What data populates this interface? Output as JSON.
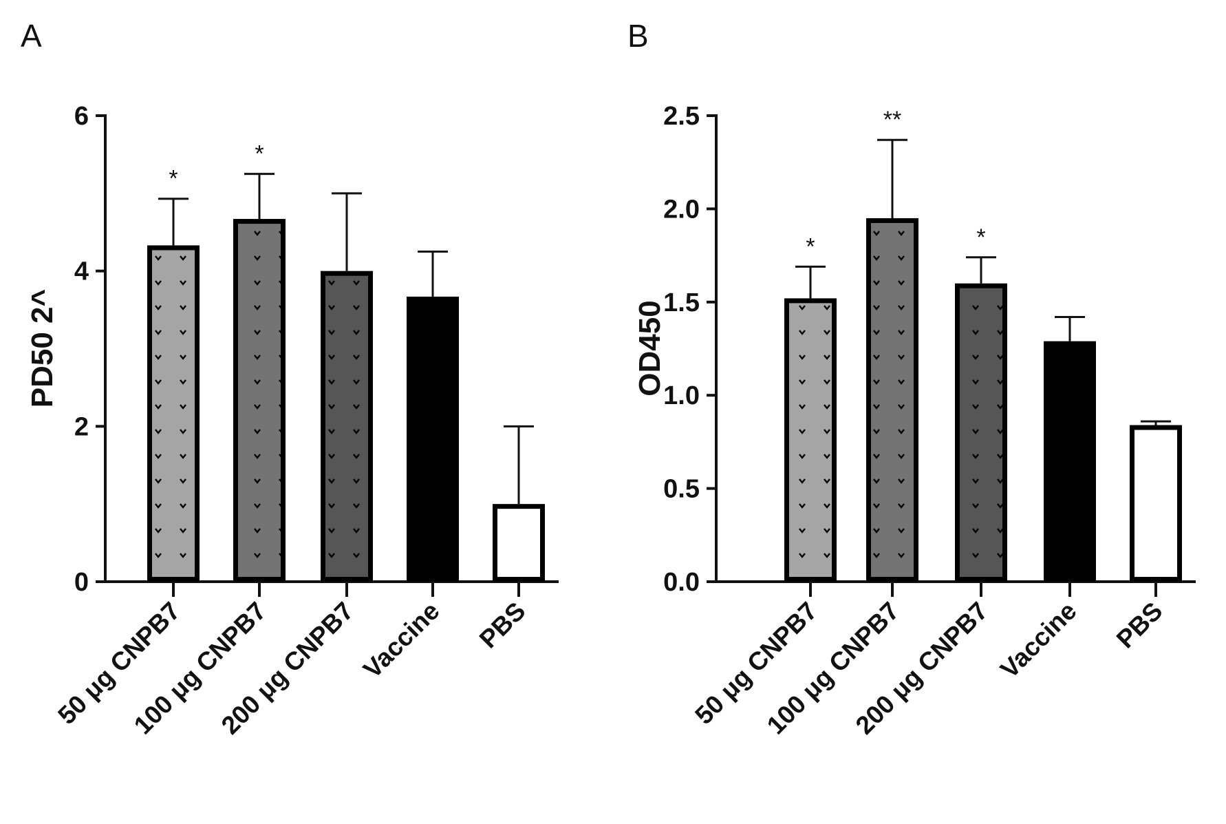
{
  "colors": {
    "light_gray": "#a6a6a6",
    "mid_gray": "#737373",
    "dark_gray": "#565656",
    "black": "#000000",
    "white": "#ffffff",
    "axis": "#111111"
  },
  "chart_data": [
    {
      "panel": "A",
      "type": "bar",
      "title": "",
      "xlabel": "",
      "ylabel": "PD50 2^",
      "ylim": [
        0,
        6
      ],
      "yticks": [
        "0",
        "2",
        "4",
        "6"
      ],
      "categories": [
        "50 μg CNPB7",
        "100 μg CNPB7",
        "200 μg CNPB7",
        "Vaccine",
        "PBS"
      ],
      "values": [
        4.33,
        4.67,
        4.0,
        3.67,
        1.0
      ],
      "errors": [
        0.6,
        0.58,
        1.0,
        0.58,
        1.0
      ],
      "significance": [
        "*",
        "*",
        "",
        "",
        ""
      ],
      "fills": [
        "light_gray",
        "mid_gray",
        "dark_gray",
        "black",
        "white"
      ],
      "patterned": [
        true,
        true,
        true,
        false,
        false
      ]
    },
    {
      "panel": "B",
      "type": "bar",
      "title": "",
      "xlabel": "",
      "ylabel": "OD450",
      "ylim": [
        0,
        2.5
      ],
      "yticks": [
        "0.0",
        "0.5",
        "1.0",
        "1.5",
        "2.0",
        "2.5"
      ],
      "categories": [
        "50 μg CNPB7",
        "100 μg CNPB7",
        "200 μg CNPB7",
        "Vaccine",
        "PBS"
      ],
      "values": [
        1.52,
        1.95,
        1.6,
        1.29,
        0.84
      ],
      "errors": [
        0.17,
        0.42,
        0.14,
        0.13,
        0.02
      ],
      "significance": [
        "*",
        "**",
        "*",
        "",
        ""
      ],
      "fills": [
        "light_gray",
        "mid_gray",
        "dark_gray",
        "black",
        "white"
      ],
      "patterned": [
        true,
        true,
        true,
        false,
        false
      ]
    }
  ]
}
